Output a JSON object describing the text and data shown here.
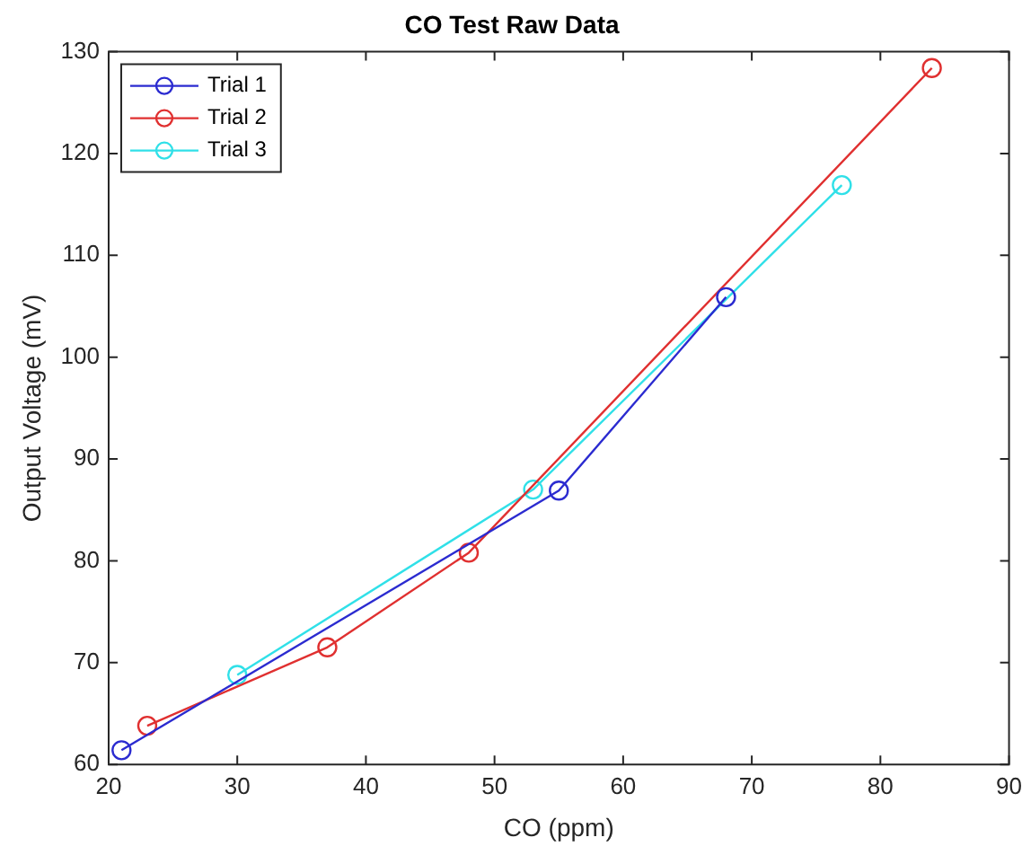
{
  "chart_data": {
    "type": "line",
    "title": "CO Test Raw Data",
    "xlabel": "CO (ppm)",
    "ylabel": "Output Voltage (mV)",
    "xlim": [
      20,
      90
    ],
    "xticks": [
      20,
      30,
      40,
      50,
      60,
      70,
      80,
      90
    ],
    "ylim": [
      60,
      130
    ],
    "yticks": [
      60,
      70,
      80,
      90,
      100,
      110,
      120,
      130
    ],
    "grid": false,
    "legend": "top left",
    "marker": "circle",
    "line_style": "solid",
    "series": [
      {
        "name": "Trial 1",
        "color": "#2b2bd0",
        "x": [
          21,
          55,
          68
        ],
        "values": [
          61.4,
          86.9,
          105.9
        ]
      },
      {
        "name": "Trial 2",
        "color": "#e03030",
        "x": [
          23,
          37,
          48,
          84
        ],
        "values": [
          63.8,
          71.5,
          80.8,
          128.4
        ]
      },
      {
        "name": "Trial 3",
        "color": "#30e0e8",
        "x": [
          30,
          53,
          77
        ],
        "values": [
          68.8,
          87.0,
          116.9
        ]
      }
    ]
  }
}
